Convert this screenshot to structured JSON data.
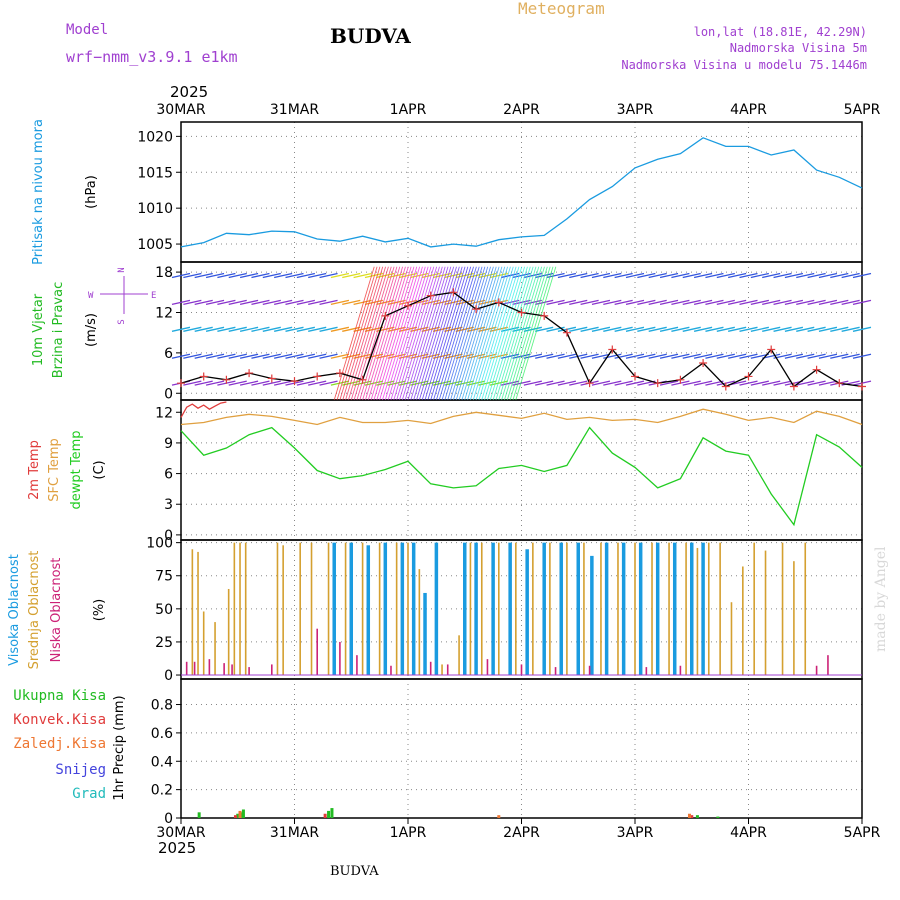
{
  "header": {
    "model_label": "Model",
    "model_name": "wrf−nmm_v3.9.1 e1km",
    "station": "BUDVA",
    "product": "Meteogram",
    "lonlat": "lon,lat (18.81E, 42.29N)",
    "elevation": "Nadmorska Visina 5m",
    "model_elevation": "Nadmorska Visina u modelu 75.1446m",
    "year": "2025",
    "footer_station": "BUDVA",
    "watermark": "made by Angel"
  },
  "colors": {
    "pressure": "#1a9be0",
    "temp2m": "#e03c3c",
    "sfc": "#e0a040",
    "dewpt": "#22cc22",
    "cloud_high": "#1a9be0",
    "cloud_mid": "#d4a030",
    "cloud_low": "#cc2277",
    "total": "#22bb22",
    "conv": "#e03c3c",
    "frozen": "#ee7733",
    "snow": "#4444dd",
    "grad": "#22bbbb",
    "label_purple": "#a040d0",
    "meteogram_orange": "#e0b060"
  },
  "chart_data": [
    {
      "type": "line",
      "name": "pressure",
      "x_dates": [
        "30MAR",
        "31MAR",
        "1APR",
        "2APR",
        "3APR",
        "4APR",
        "5APR"
      ],
      "ylabel_lines": [
        "Pritisak na nivou mora",
        "(hPa)"
      ],
      "ylim": [
        1002.5,
        1022
      ],
      "yticks": [
        1005,
        1010,
        1015,
        1020
      ],
      "grid": true,
      "x": [
        0,
        0.2,
        0.4,
        0.6,
        0.8,
        1.0,
        1.2,
        1.4,
        1.6,
        1.8,
        2.0,
        2.2,
        2.4,
        2.6,
        2.8,
        3.0,
        3.2,
        3.4,
        3.6,
        3.8,
        4.0,
        4.2,
        4.4,
        4.6,
        4.8,
        5.0,
        5.2,
        5.4,
        5.6,
        5.8,
        6.0
      ],
      "values": [
        1004.6,
        1005.2,
        1006.5,
        1006.3,
        1006.8,
        1006.7,
        1005.7,
        1005.4,
        1006.1,
        1005.3,
        1005.8,
        1004.6,
        1005.0,
        1004.7,
        1005.6,
        1006.0,
        1006.2,
        1008.5,
        1011.2,
        1013.0,
        1015.6,
        1016.8,
        1017.6,
        1019.8,
        1018.6,
        1018.6,
        1017.4,
        1018.1,
        1015.3,
        1014.3,
        1012.8
      ]
    },
    {
      "type": "line",
      "name": "wind",
      "ylabel_lines": [
        "10m Vjetar",
        "Brzina i Pravac",
        "(m/s)"
      ],
      "compass": [
        "N",
        "W",
        "E",
        "S"
      ],
      "ylim": [
        -1,
        19.5
      ],
      "yticks": [
        0,
        6,
        12,
        18
      ],
      "grid": true,
      "x": [
        0,
        0.2,
        0.4,
        0.6,
        0.8,
        1.0,
        1.2,
        1.4,
        1.6,
        1.8,
        2.0,
        2.2,
        2.4,
        2.6,
        2.8,
        3.0,
        3.2,
        3.4,
        3.6,
        3.8,
        4.0,
        4.2,
        4.4,
        4.6,
        4.8,
        5.0,
        5.2,
        5.4,
        5.6,
        5.8,
        6.0
      ],
      "values": [
        1.5,
        2.5,
        2.0,
        3.0,
        2.2,
        1.8,
        2.5,
        3.0,
        2.0,
        11.5,
        13.0,
        14.5,
        15.0,
        12.5,
        13.5,
        12.0,
        11.5,
        9.0,
        1.5,
        6.5,
        2.5,
        1.5,
        2.0,
        4.5,
        1.0,
        2.5,
        6.5,
        1.0,
        3.5,
        1.5,
        1.0
      ]
    },
    {
      "type": "line",
      "name": "temperature",
      "ylabel_lines": [
        "2m Temp",
        "SFC Temp",
        "dewpt Temp",
        "(C)"
      ],
      "ylim": [
        -0.5,
        13.2
      ],
      "yticks": [
        0,
        3,
        6,
        9,
        12
      ],
      "grid": true,
      "series": [
        {
          "name": "2m Temp",
          "x": [
            0,
            0.05,
            0.1,
            0.15,
            0.2,
            0.25,
            0.3,
            0.35,
            0.4
          ],
          "values": [
            11.5,
            12.5,
            12.8,
            12.4,
            12.7,
            12.3,
            12.6,
            12.9,
            13.0
          ]
        },
        {
          "name": "SFC Temp",
          "x": [
            0,
            0.2,
            0.4,
            0.6,
            0.8,
            1.0,
            1.2,
            1.4,
            1.6,
            1.8,
            2.0,
            2.2,
            2.4,
            2.6,
            2.8,
            3.0,
            3.2,
            3.4,
            3.6,
            3.8,
            4.0,
            4.2,
            4.4,
            4.6,
            4.8,
            5.0,
            5.2,
            5.4,
            5.6,
            5.8,
            6.0
          ],
          "values": [
            10.8,
            11.0,
            11.5,
            11.8,
            11.6,
            11.2,
            10.8,
            11.5,
            11.0,
            11.0,
            11.2,
            10.9,
            11.6,
            12.0,
            11.7,
            11.4,
            11.9,
            11.3,
            11.5,
            11.2,
            11.3,
            11.0,
            11.6,
            12.3,
            11.8,
            11.2,
            11.5,
            11.0,
            12.1,
            11.6,
            10.8
          ]
        },
        {
          "name": "dewpt Temp",
          "x": [
            0,
            0.2,
            0.4,
            0.6,
            0.8,
            1.0,
            1.2,
            1.4,
            1.6,
            1.8,
            2.0,
            2.2,
            2.4,
            2.6,
            2.8,
            3.0,
            3.2,
            3.4,
            3.6,
            3.8,
            4.0,
            4.2,
            4.4,
            4.6,
            4.8,
            5.0,
            5.2,
            5.4,
            5.6,
            5.8,
            6.0
          ],
          "values": [
            10.2,
            7.8,
            8.5,
            9.8,
            10.5,
            8.5,
            6.3,
            5.5,
            5.8,
            6.4,
            7.2,
            5.0,
            4.6,
            4.8,
            6.5,
            6.8,
            6.2,
            6.8,
            10.5,
            8.0,
            6.6,
            4.6,
            5.5,
            9.5,
            8.2,
            7.8,
            4.0,
            1.0,
            9.8,
            8.6,
            6.6
          ]
        }
      ]
    },
    {
      "type": "bar",
      "name": "cloud",
      "ylabel_lines": [
        "Visoka Oblacnost",
        "Srednja Oblacnost",
        "Niska Oblacnost",
        "(%)"
      ],
      "ylim": [
        -3,
        102
      ],
      "yticks": [
        0,
        25,
        50,
        75,
        100
      ],
      "grid": true,
      "series": [
        {
          "name": "Visoka Oblacnost",
          "x": [
            1.35,
            1.5,
            1.65,
            1.8,
            1.95,
            2.05,
            2.15,
            2.25,
            2.5,
            2.6,
            2.75,
            2.9,
            3.05,
            3.2,
            3.35,
            3.5,
            3.62,
            3.75,
            3.9,
            4.05,
            4.2,
            4.35,
            4.5,
            4.6
          ],
          "values": [
            100,
            100,
            98,
            100,
            100,
            100,
            62,
            100,
            100,
            100,
            100,
            100,
            95,
            100,
            100,
            100,
            90,
            100,
            100,
            100,
            100,
            100,
            100,
            100
          ]
        },
        {
          "name": "Srednja Oblacnost",
          "x": [
            0.1,
            0.15,
            0.2,
            0.3,
            0.42,
            0.47,
            0.52,
            0.57,
            0.85,
            0.9,
            1.05,
            1.15,
            1.3,
            1.45,
            1.6,
            1.75,
            1.9,
            2.0,
            2.1,
            2.3,
            2.45,
            2.55,
            2.65,
            2.8,
            2.95,
            3.1,
            3.25,
            3.4,
            3.55,
            3.7,
            3.85,
            4.0,
            4.15,
            4.3,
            4.45,
            4.55,
            4.65,
            4.75,
            4.85,
            4.95,
            5.05,
            5.15,
            5.3,
            5.4,
            5.5
          ],
          "values": [
            95,
            93,
            48,
            40,
            65,
            100,
            100,
            100,
            100,
            98,
            100,
            100,
            100,
            100,
            100,
            100,
            100,
            100,
            80,
            8,
            30,
            100,
            100,
            100,
            100,
            100,
            100,
            100,
            100,
            100,
            100,
            100,
            100,
            100,
            100,
            96,
            100,
            100,
            55,
            82,
            100,
            94,
            100,
            86,
            100
          ]
        },
        {
          "name": "Niska Oblacnost",
          "x": [
            0.05,
            0.12,
            0.25,
            0.38,
            0.45,
            0.6,
            0.8,
            1.2,
            1.4,
            1.55,
            1.85,
            2.2,
            2.35,
            2.7,
            3.0,
            3.3,
            3.6,
            4.1,
            4.4,
            5.6,
            5.7
          ],
          "values": [
            10,
            10,
            12,
            9,
            8,
            6,
            8,
            35,
            25,
            15,
            7,
            10,
            8,
            12,
            8,
            6,
            7,
            6,
            7,
            7,
            15
          ]
        }
      ]
    },
    {
      "type": "bar",
      "name": "precipitation",
      "ylabel_lines": [
        "1hr Precip (mm)"
      ],
      "legend_entries": [
        "Ukupna Kisa",
        "Konvek.Kisa",
        "Zaledj.Kisa",
        "Snijeg",
        "Grad"
      ],
      "ylim": [
        0,
        0.98
      ],
      "yticks": [
        0,
        0.2,
        0.4,
        0.6,
        0.8
      ],
      "ytick_labels": [
        "0",
        "0.2",
        "0.4",
        "0.6",
        "0.8"
      ],
      "grid": true,
      "series": [
        {
          "name": "Ukupna Kisa",
          "x": [
            0.16,
            0.5,
            0.55,
            0.53,
            1.3,
            1.33,
            4.55,
            4.73
          ],
          "values": [
            0.04,
            0.03,
            0.06,
            0.04,
            0.05,
            0.07,
            0.02,
            0.01
          ]
        },
        {
          "name": "Konvek.Kisa",
          "x": [
            0.48,
            1.27,
            4.5
          ],
          "values": [
            0.02,
            0.03,
            0.02
          ]
        },
        {
          "name": "Zaledj.Kisa",
          "x": [
            0.52,
            2.8,
            4.48
          ],
          "values": [
            0.05,
            0.02,
            0.03
          ]
        }
      ]
    }
  ]
}
